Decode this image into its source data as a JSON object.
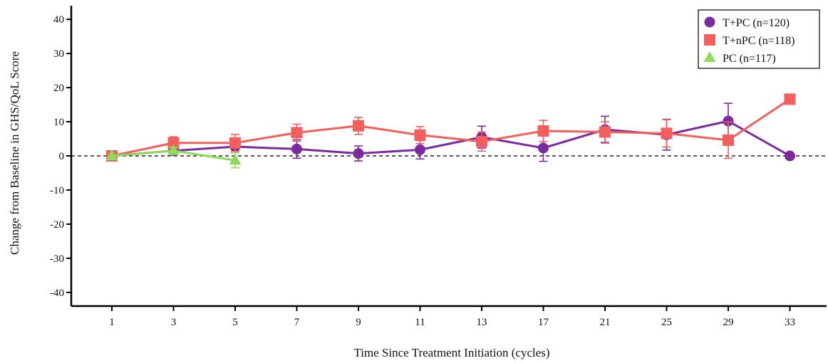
{
  "chart_data": {
    "type": "line",
    "xlabel": "Time Since Treatment Initiation (cycles)",
    "ylabel": "Change from Baseline in GHS/QoL Score",
    "categories": [
      "1",
      "3",
      "5",
      "7",
      "9",
      "11",
      "13",
      "17",
      "21",
      "25",
      "29",
      "33"
    ],
    "ylim": [
      -44,
      44
    ],
    "yticks": [
      -40,
      -30,
      -20,
      -10,
      0,
      10,
      20,
      30,
      40
    ],
    "reference_line": 0,
    "legend_position": "top-right",
    "series": [
      {
        "name": "T+PC (n=120)",
        "marker": "circle",
        "color": "#7B2AA0",
        "values": [
          0,
          1.5,
          2.7,
          2.0,
          0.7,
          1.8,
          5.5,
          2.3,
          7.7,
          6.2,
          10.2,
          0
        ],
        "err": [
          0,
          0,
          0,
          2.7,
          2.2,
          2.7,
          3.2,
          3.9,
          3.9,
          4.5,
          5.2,
          0
        ]
      },
      {
        "name": "T+nPC (n=118)",
        "marker": "square",
        "color": "#F25F5C",
        "values": [
          0,
          3.8,
          3.8,
          6.8,
          8.8,
          6.1,
          4.2,
          7.3,
          7.0,
          6.6,
          4.6,
          16.6
        ],
        "err": [
          0,
          1.8,
          2.5,
          2.5,
          2.5,
          2.5,
          2.8,
          3.1,
          3.0,
          4.0,
          5.3,
          0
        ]
      },
      {
        "name": "PC (n=117)",
        "marker": "triangle",
        "color": "#8EDB5C",
        "values": [
          0,
          1.5,
          -1.3,
          null,
          null,
          null,
          null,
          null,
          null,
          null,
          null,
          null
        ],
        "err": [
          0,
          1.0,
          2.2,
          null,
          null,
          null,
          null,
          null,
          null,
          null,
          null,
          null
        ]
      }
    ]
  }
}
